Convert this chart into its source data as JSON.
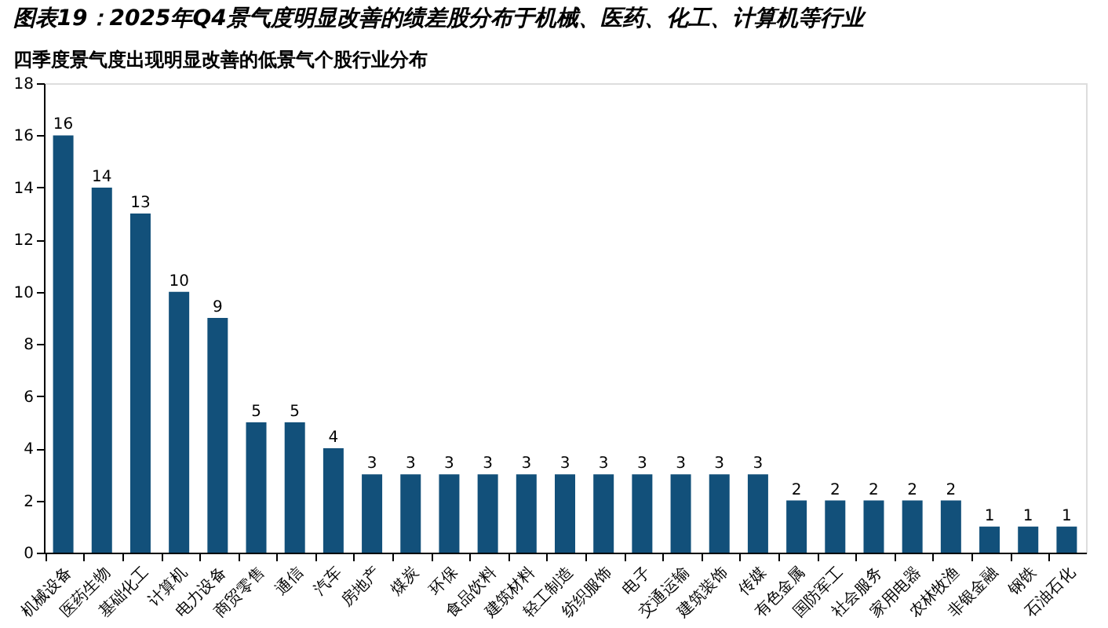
{
  "chart_data": {
    "type": "bar",
    "title": "图表19：2025年Q4景气度明显改善的绩差股分布于机械、医药、化工、计算机等行业",
    "subtitle": "四季度景气度出现明显改善的低景气个股行业分布",
    "categories": [
      "机械设备",
      "医药生物",
      "基础化工",
      "计算机",
      "电力设备",
      "商贸零售",
      "通信",
      "汽车",
      "房地产",
      "煤炭",
      "环保",
      "食品饮料",
      "建筑材料",
      "轻工制造",
      "纺织服饰",
      "电子",
      "交通运输",
      "建筑装饰",
      "传媒",
      "有色金属",
      "国防军工",
      "社会服务",
      "家用电器",
      "农林牧渔",
      "非银金融",
      "钢铁",
      "石油石化"
    ],
    "values": [
      16,
      14,
      13,
      10,
      9,
      5,
      5,
      4,
      3,
      3,
      3,
      3,
      3,
      3,
      3,
      3,
      3,
      3,
      3,
      2,
      2,
      2,
      2,
      2,
      1,
      1,
      1
    ],
    "color": "#12507a",
    "ylim": [
      0,
      18
    ],
    "yticks": [
      0,
      2,
      4,
      6,
      8,
      10,
      12,
      14,
      16,
      18
    ],
    "data_labels": true,
    "grid": false
  }
}
